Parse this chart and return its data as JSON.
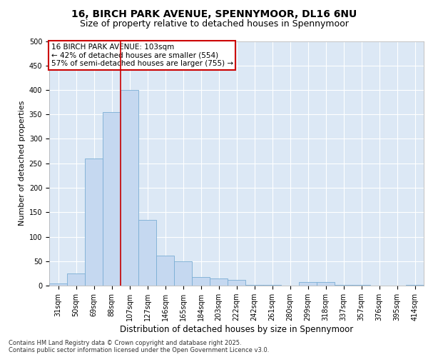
{
  "title1": "16, BIRCH PARK AVENUE, SPENNYMOOR, DL16 6NU",
  "title2": "Size of property relative to detached houses in Spennymoor",
  "xlabel": "Distribution of detached houses by size in Spennymoor",
  "ylabel": "Number of detached properties",
  "categories": [
    "31sqm",
    "50sqm",
    "69sqm",
    "88sqm",
    "107sqm",
    "127sqm",
    "146sqm",
    "165sqm",
    "184sqm",
    "203sqm",
    "222sqm",
    "242sqm",
    "261sqm",
    "280sqm",
    "299sqm",
    "318sqm",
    "337sqm",
    "357sqm",
    "376sqm",
    "395sqm",
    "414sqm"
  ],
  "values": [
    5,
    25,
    260,
    355,
    400,
    135,
    62,
    50,
    18,
    15,
    12,
    2,
    2,
    0,
    8,
    8,
    1,
    2,
    0,
    0,
    2
  ],
  "bar_color": "#c5d8f0",
  "bar_edge_color": "#7aadd4",
  "vertical_line_color": "#cc0000",
  "vertical_line_x": 3.5,
  "annotation_text": "16 BIRCH PARK AVENUE: 103sqm\n← 42% of detached houses are smaller (554)\n57% of semi-detached houses are larger (755) →",
  "annotation_box_color": "#ffffff",
  "annotation_box_edge_color": "#cc0000",
  "ylim": [
    0,
    500
  ],
  "yticks": [
    0,
    50,
    100,
    150,
    200,
    250,
    300,
    350,
    400,
    450,
    500
  ],
  "fig_bg_color": "#ffffff",
  "plot_bg_color": "#dce8f5",
  "grid_color": "#ffffff",
  "footer": "Contains HM Land Registry data © Crown copyright and database right 2025.\nContains public sector information licensed under the Open Government Licence v3.0.",
  "title_fontsize": 10,
  "subtitle_fontsize": 9,
  "tick_fontsize": 7,
  "ylabel_fontsize": 8,
  "xlabel_fontsize": 8.5,
  "annot_fontsize": 7.5,
  "footer_fontsize": 6
}
